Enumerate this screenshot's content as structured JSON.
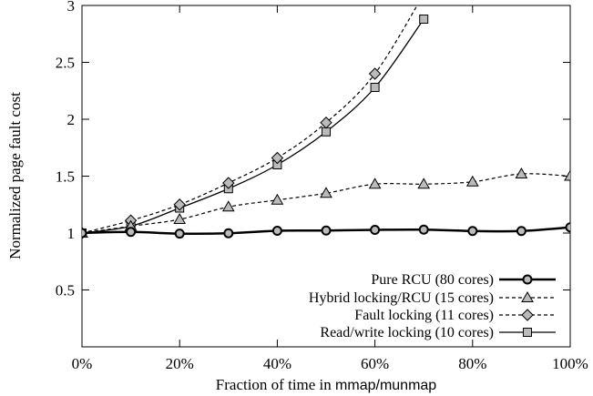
{
  "chart_data": {
    "type": "line",
    "xlabel_prefix": "Fraction of time in ",
    "xlabel_code": "mmap/munmap",
    "ylabel": "Normalized page fault cost",
    "x": [
      0,
      10,
      20,
      30,
      40,
      50,
      60,
      70,
      80,
      90,
      100
    ],
    "xlim": [
      0,
      100
    ],
    "ylim": [
      0,
      3
    ],
    "xticks": [
      0,
      20,
      40,
      60,
      80,
      100
    ],
    "xtick_labels": [
      "0%",
      "20%",
      "40%",
      "60%",
      "80%",
      "100%"
    ],
    "yticks": [
      0.5,
      1,
      1.5,
      2,
      2.5,
      3
    ],
    "ytick_labels": [
      "0.5",
      "1",
      "1.5",
      "2",
      "2.5",
      "3"
    ],
    "grid": false,
    "legend_position": "bottom-right",
    "series": [
      {
        "name": "Pure RCU (80 cores)",
        "marker": "circle",
        "line": "solid-thick",
        "color": "#000000",
        "marker_fill": "#bbbbbb",
        "x": [
          0,
          10,
          20,
          30,
          40,
          50,
          60,
          70,
          80,
          90,
          100
        ],
        "values": [
          1.0,
          1.01,
          0.995,
          0.998,
          1.02,
          1.022,
          1.028,
          1.03,
          1.018,
          1.018,
          1.05
        ]
      },
      {
        "name": "Hybrid locking/RCU (15 cores)",
        "marker": "triangle",
        "line": "dashed",
        "color": "#000000",
        "marker_fill": "#bbbbbb",
        "x": [
          0,
          10,
          20,
          30,
          40,
          50,
          60,
          70,
          80,
          90,
          100
        ],
        "values": [
          1.0,
          1.06,
          1.12,
          1.23,
          1.29,
          1.35,
          1.43,
          1.43,
          1.45,
          1.52,
          1.5
        ]
      },
      {
        "name": "Fault locking (11 cores)",
        "marker": "diamond",
        "line": "dashed",
        "color": "#000000",
        "marker_fill": "#bbbbbb",
        "x": [
          0,
          10,
          20,
          30,
          40,
          50,
          60,
          70
        ],
        "values": [
          1.0,
          1.11,
          1.25,
          1.44,
          1.66,
          1.97,
          2.4,
          3.1
        ]
      },
      {
        "name": "Read/write locking (10 cores)",
        "marker": "square",
        "line": "solid",
        "color": "#000000",
        "marker_fill": "#bbbbbb",
        "x": [
          0,
          10,
          20,
          30,
          40,
          50,
          60,
          70
        ],
        "values": [
          1.0,
          1.06,
          1.22,
          1.39,
          1.6,
          1.89,
          2.28,
          2.88
        ]
      }
    ]
  }
}
